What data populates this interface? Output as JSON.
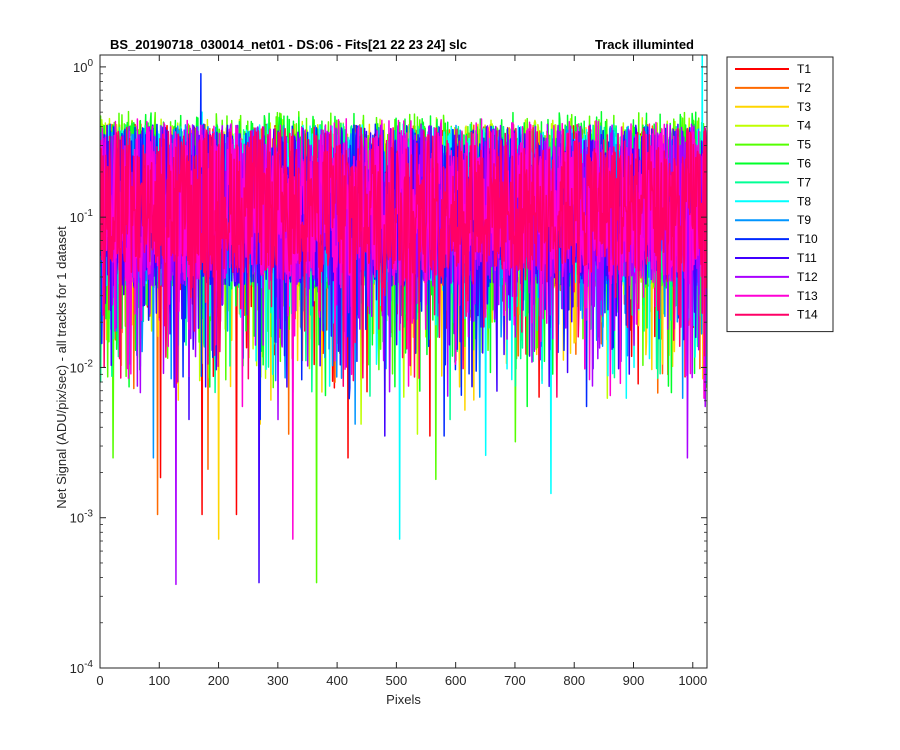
{
  "chart_data": {
    "type": "line",
    "title": "BS_20190718_030014_net01 - DS:06 - Fits[21  22  23  24]   slc",
    "title_right": "Track illuminted",
    "xlabel": "Pixels",
    "ylabel": "Net Signal (ADU/pix/sec) - all tracks for 1 dataset",
    "xlim": [
      0,
      1024
    ],
    "ylim": [
      0.0001,
      1.2
    ],
    "yscale": "log",
    "x_ticks": [
      0,
      100,
      200,
      300,
      400,
      500,
      600,
      700,
      800,
      900,
      1000
    ],
    "y_ticks": [
      {
        "value": 0.0001,
        "base": "10",
        "exp": "-4"
      },
      {
        "value": 0.001,
        "base": "10",
        "exp": "-3"
      },
      {
        "value": 0.01,
        "base": "10",
        "exp": "-2"
      },
      {
        "value": 0.1,
        "base": "10",
        "exp": "-1"
      },
      {
        "value": 1,
        "base": "10",
        "exp": "0"
      }
    ],
    "grid": false,
    "legend_position": "outside-right",
    "points_per_series": 1024,
    "series": [
      {
        "name": "T1",
        "color": "#ff0000",
        "baseline": 0.12,
        "spread": 0.22,
        "spikes": [
          [
            102,
            0.00185
          ],
          [
            172,
            0.00105
          ],
          [
            230,
            0.00105
          ],
          [
            418,
            0.0025
          ],
          [
            556,
            0.0035
          ]
        ]
      },
      {
        "name": "T2",
        "color": "#ff6a00",
        "baseline": 0.12,
        "spread": 0.22,
        "spikes": [
          [
            97,
            0.00105
          ],
          [
            182,
            0.0021
          ],
          [
            318,
            0.0036
          ]
        ]
      },
      {
        "name": "T3",
        "color": "#ffd500",
        "baseline": 0.12,
        "spread": 0.22,
        "spikes": [
          [
            200,
            0.00072
          ],
          [
            270,
            0.0042
          ],
          [
            615,
            0.0052
          ]
        ]
      },
      {
        "name": "T4",
        "color": "#bfff00",
        "baseline": 0.125,
        "spread": 0.23,
        "spikes": [
          [
            440,
            0.0042
          ],
          [
            535,
            0.0036
          ]
        ]
      },
      {
        "name": "T5",
        "color": "#55ff00",
        "baseline": 0.13,
        "spread": 0.24,
        "spikes": [
          [
            365,
            0.00037
          ],
          [
            22,
            0.0025
          ],
          [
            566,
            0.0018
          ],
          [
            700,
            0.0032
          ]
        ]
      },
      {
        "name": "T6",
        "color": "#00ff2a",
        "baseline": 0.13,
        "spread": 0.24,
        "spikes": [
          [
            380,
            0.0065
          ],
          [
            720,
            0.0055
          ]
        ]
      },
      {
        "name": "T7",
        "color": "#00ff95",
        "baseline": 0.12,
        "spread": 0.22,
        "spikes": [
          [
            590,
            0.0045
          ]
        ]
      },
      {
        "name": "T8",
        "color": "#00ffff",
        "baseline": 0.12,
        "spread": 0.22,
        "spikes": [
          [
            505,
            0.00072
          ],
          [
            760,
            0.00145
          ],
          [
            650,
            0.0026
          ],
          [
            1015,
            1.25
          ],
          [
            172,
            0.5
          ]
        ]
      },
      {
        "name": "T9",
        "color": "#0095ff",
        "baseline": 0.12,
        "spread": 0.22,
        "spikes": [
          [
            90,
            0.0025
          ],
          [
            430,
            0.0042
          ]
        ]
      },
      {
        "name": "T10",
        "color": "#002aff",
        "baseline": 0.12,
        "spread": 0.22,
        "spikes": [
          [
            170,
            0.9
          ],
          [
            270,
            0.0045
          ],
          [
            420,
            0.0062
          ],
          [
            580,
            0.0035
          ],
          [
            820,
            0.0055
          ]
        ]
      },
      {
        "name": "T11",
        "color": "#4000ff",
        "baseline": 0.12,
        "spread": 0.22,
        "spikes": [
          [
            268,
            0.00037
          ],
          [
            150,
            0.0045
          ],
          [
            480,
            0.0035
          ]
        ]
      },
      {
        "name": "T12",
        "color": "#aa00ff",
        "baseline": 0.12,
        "spread": 0.22,
        "spikes": [
          [
            128,
            0.00036
          ],
          [
            300,
            0.0045
          ],
          [
            990,
            0.0025
          ],
          [
            1020,
            0.0055
          ]
        ]
      },
      {
        "name": "T13",
        "color": "#ff00d5",
        "baseline": 0.13,
        "spread": 0.22,
        "spikes": [
          [
            325,
            0.00072
          ],
          [
            240,
            0.0055
          ],
          [
            860,
            0.0065
          ]
        ]
      },
      {
        "name": "T14",
        "color": "#ff0066",
        "baseline": 0.13,
        "spread": 0.2,
        "spikes": [
          [
            410,
            0.0075
          ],
          [
            35,
            0.0085
          ]
        ]
      }
    ]
  }
}
